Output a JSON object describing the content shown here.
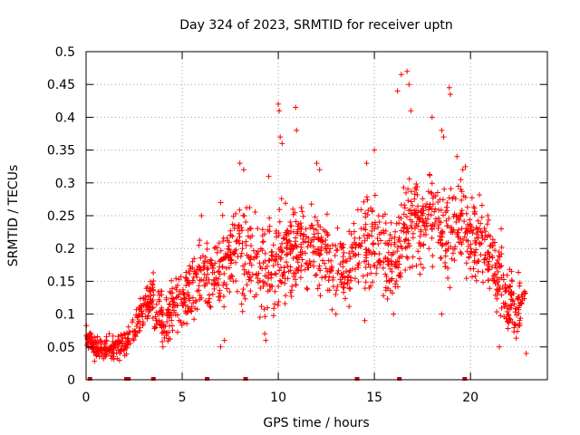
{
  "chart_data": {
    "type": "scatter",
    "title": "Day 324 of 2023, SRMTID for receiver uptn",
    "xlabel": "GPS time / hours",
    "ylabel": "SRMTID / TECUs",
    "xlim": [
      0,
      24
    ],
    "ylim": [
      0,
      0.5
    ],
    "xticks": [
      0,
      5,
      10,
      15,
      20
    ],
    "xtick_labels": [
      "0",
      "5",
      "10",
      "15",
      "20"
    ],
    "yticks": [
      0,
      0.05,
      0.1,
      0.15,
      0.2,
      0.25,
      0.3,
      0.35,
      0.4,
      0.45,
      0.5
    ],
    "ytick_labels": [
      "0",
      "0.05",
      "0.1",
      "0.15",
      "0.2",
      "0.25",
      "0.3",
      "0.35",
      "0.4",
      "0.45",
      "0.5"
    ],
    "grid": true,
    "marker": "+",
    "series_color": "#ff0000",
    "trend": [
      [
        0.0,
        0.07
      ],
      [
        0.5,
        0.045
      ],
      [
        1.0,
        0.045
      ],
      [
        1.5,
        0.05
      ],
      [
        2.0,
        0.055
      ],
      [
        2.5,
        0.075
      ],
      [
        3.0,
        0.11
      ],
      [
        3.5,
        0.125
      ],
      [
        4.0,
        0.09
      ],
      [
        4.5,
        0.11
      ],
      [
        5.0,
        0.12
      ],
      [
        5.5,
        0.14
      ],
      [
        6.0,
        0.16
      ],
      [
        6.5,
        0.15
      ],
      [
        7.0,
        0.17
      ],
      [
        7.5,
        0.19
      ],
      [
        8.0,
        0.2
      ],
      [
        8.5,
        0.185
      ],
      [
        9.0,
        0.175
      ],
      [
        9.5,
        0.17
      ],
      [
        10.0,
        0.18
      ],
      [
        10.5,
        0.2
      ],
      [
        11.0,
        0.205
      ],
      [
        11.5,
        0.2
      ],
      [
        12.0,
        0.2
      ],
      [
        12.5,
        0.19
      ],
      [
        13.0,
        0.16
      ],
      [
        13.5,
        0.17
      ],
      [
        14.0,
        0.19
      ],
      [
        14.5,
        0.2
      ],
      [
        15.0,
        0.21
      ],
      [
        15.5,
        0.2
      ],
      [
        16.0,
        0.17
      ],
      [
        16.5,
        0.22
      ],
      [
        17.0,
        0.25
      ],
      [
        17.5,
        0.23
      ],
      [
        18.0,
        0.26
      ],
      [
        18.5,
        0.23
      ],
      [
        19.0,
        0.22
      ],
      [
        19.5,
        0.25
      ],
      [
        20.0,
        0.22
      ],
      [
        20.5,
        0.21
      ],
      [
        21.0,
        0.19
      ],
      [
        21.5,
        0.15
      ],
      [
        22.0,
        0.12
      ],
      [
        22.5,
        0.11
      ],
      [
        22.85,
        0.11
      ]
    ],
    "spread": [
      [
        0.0,
        0.01
      ],
      [
        2.0,
        0.015
      ],
      [
        3.0,
        0.02
      ],
      [
        5.0,
        0.03
      ],
      [
        7.0,
        0.04
      ],
      [
        8.5,
        0.05
      ],
      [
        10.0,
        0.05
      ],
      [
        12.5,
        0.04
      ],
      [
        15.0,
        0.045
      ],
      [
        17.0,
        0.05
      ],
      [
        19.0,
        0.05
      ],
      [
        21.0,
        0.04
      ],
      [
        22.85,
        0.03
      ]
    ],
    "outliers": [
      [
        10.0,
        0.42
      ],
      [
        10.05,
        0.41
      ],
      [
        10.1,
        0.37
      ],
      [
        10.2,
        0.36
      ],
      [
        10.9,
        0.415
      ],
      [
        10.95,
        0.38
      ],
      [
        16.2,
        0.44
      ],
      [
        16.4,
        0.465
      ],
      [
        16.7,
        0.47
      ],
      [
        16.8,
        0.45
      ],
      [
        16.9,
        0.41
      ],
      [
        18.0,
        0.4
      ],
      [
        18.9,
        0.445
      ],
      [
        18.95,
        0.435
      ],
      [
        18.5,
        0.38
      ],
      [
        18.6,
        0.37
      ],
      [
        15.0,
        0.35
      ],
      [
        14.6,
        0.33
      ],
      [
        12.0,
        0.33
      ],
      [
        12.15,
        0.32
      ],
      [
        8.0,
        0.33
      ],
      [
        8.2,
        0.32
      ],
      [
        9.5,
        0.31
      ],
      [
        7.0,
        0.27
      ],
      [
        6.0,
        0.25
      ],
      [
        19.3,
        0.34
      ],
      [
        19.6,
        0.32
      ],
      [
        14.5,
        0.09
      ],
      [
        9.3,
        0.07
      ],
      [
        9.35,
        0.06
      ],
      [
        7.0,
        0.05
      ],
      [
        7.2,
        0.06
      ],
      [
        4.0,
        0.05
      ],
      [
        13.0,
        0.1
      ],
      [
        16.0,
        0.1
      ],
      [
        18.5,
        0.1
      ],
      [
        21.6,
        0.23
      ],
      [
        22.9,
        0.04
      ],
      [
        21.5,
        0.05
      ],
      [
        20.9,
        0.25
      ]
    ],
    "bottom_markers": [
      0.2,
      2.1,
      2.2,
      3.5,
      6.3,
      8.3,
      14.1,
      16.3,
      19.7
    ],
    "bottom_marker_color": "#cc0000"
  }
}
